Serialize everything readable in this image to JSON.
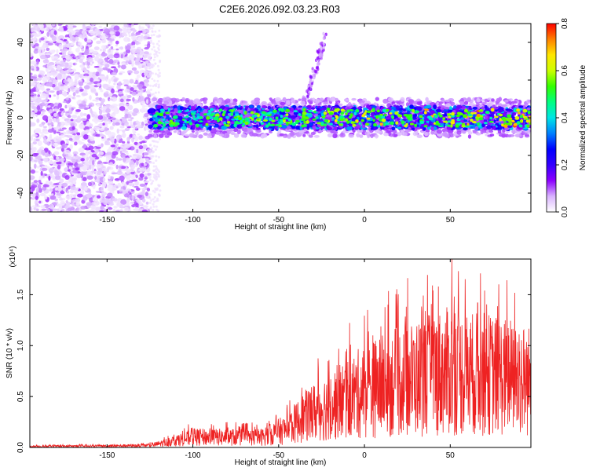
{
  "figure": {
    "title": "C2E6.2026.092.03.23.R03"
  },
  "chart_data": [
    {
      "type": "heatmap",
      "title": "",
      "xlabel": "Height of straight line (km)",
      "ylabel": "Frequency (Hz)",
      "xlim": [
        -195,
        97
      ],
      "ylim": [
        -50,
        50
      ],
      "x_ticks": [
        -150,
        -100,
        -50,
        0,
        50
      ],
      "x_tick_labels": [
        "-150",
        "-100",
        "-50",
        "0",
        "50"
      ],
      "y_ticks": [
        -40,
        -20,
        0,
        20,
        40
      ],
      "y_tick_labels": [
        "-40",
        "-20",
        "0",
        "20",
        "40"
      ],
      "colorbar": {
        "label": "Normalized spectral amplitude",
        "range": [
          0.0,
          0.8
        ],
        "ticks": [
          0.0,
          0.2,
          0.4,
          0.6,
          0.8
        ],
        "tick_labels": [
          "0.0",
          "0.2",
          "0.4",
          "0.6",
          "0.8"
        ],
        "colormap": [
          "#ffffff",
          "#d9b3ff",
          "#8c00ff",
          "#3300ff",
          "#0000ff",
          "#0080ff",
          "#00e5e5",
          "#00ff80",
          "#33ff00",
          "#ccff00",
          "#ffe600",
          "#ff8000",
          "#ff0000"
        ]
      },
      "regions": [
        {
          "name": "diffuse noise",
          "x_range": [
            -195,
            -125
          ],
          "freq_range": [
            -50,
            50
          ],
          "amplitude_range": [
            0.02,
            0.12
          ]
        },
        {
          "name": "central band",
          "x_range": [
            -125,
            97
          ],
          "freq_center": 0,
          "freq_halfwidth": 6,
          "amplitude_range": [
            0.1,
            0.8
          ]
        },
        {
          "name": "faint streak",
          "x_range": [
            -35,
            -22
          ],
          "freq_range": [
            8,
            45
          ],
          "amplitude_range": [
            0.05,
            0.15
          ]
        }
      ]
    },
    {
      "type": "line",
      "title": "",
      "xlabel": "Height of straight line (km)",
      "ylabel": "SNR (10 * v/v)",
      "y_multiplier": "(x10⁴)",
      "xlim": [
        -195,
        97
      ],
      "ylim": [
        0,
        1.85
      ],
      "x_ticks": [
        -150,
        -100,
        -50,
        0,
        50
      ],
      "x_tick_labels": [
        "-150",
        "-100",
        "-50",
        "0",
        "50"
      ],
      "y_ticks": [
        0.0,
        0.5,
        1.0,
        1.5
      ],
      "y_tick_labels": [
        "0.0",
        "0.5",
        "1.0",
        "1.5"
      ],
      "series": [
        {
          "name": "SNR",
          "color": "#ee2222",
          "envelope_x": [
            -195,
            -150,
            -125,
            -112,
            -100,
            -80,
            -60,
            -45,
            -35,
            -25,
            -10,
            0,
            10,
            20,
            30,
            40,
            50,
            60,
            70,
            80,
            97
          ],
          "envelope_y": [
            0.01,
            0.015,
            0.02,
            0.06,
            0.1,
            0.1,
            0.1,
            0.18,
            0.3,
            0.38,
            0.48,
            0.55,
            0.6,
            0.65,
            0.68,
            0.72,
            0.75,
            0.72,
            0.72,
            0.7,
            0.65
          ],
          "peaks": [
            {
              "x": 51,
              "y": 1.85
            },
            {
              "x": 43,
              "y": 1.58
            },
            {
              "x": 66,
              "y": 1.42
            },
            {
              "x": 5,
              "y": 1.1
            }
          ]
        }
      ]
    }
  ]
}
